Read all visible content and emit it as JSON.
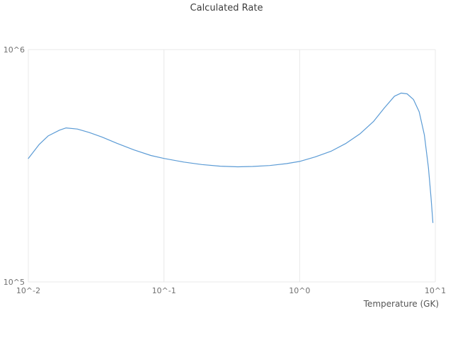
{
  "chart_data": {
    "type": "line",
    "title": "Calculated Rate",
    "xlabel": "Temperature (GK)",
    "ylabel": "",
    "x_scale": "log",
    "y_scale": "log",
    "xlim": [
      0.01,
      10
    ],
    "ylim": [
      100000,
      1000000
    ],
    "grid": true,
    "grid_color": "#e8e8e8",
    "line_color": "#5b9bd5",
    "x_tick_values": [
      0.01,
      0.1,
      1,
      10
    ],
    "x_tick_labels": [
      "10^-2",
      "10^-1",
      "10^0",
      "10^1"
    ],
    "y_tick_values": [
      100000,
      1000000
    ],
    "y_tick_labels": [
      "10^5",
      "10^6"
    ],
    "legend": "none",
    "series": [
      {
        "name": "calculated-rate",
        "x": [
          0.01,
          0.012,
          0.014,
          0.017,
          0.019,
          0.023,
          0.028,
          0.035,
          0.045,
          0.06,
          0.08,
          0.1,
          0.14,
          0.19,
          0.26,
          0.35,
          0.45,
          0.6,
          0.8,
          1.0,
          1.3,
          1.7,
          2.2,
          2.8,
          3.5,
          4.2,
          5.0,
          5.6,
          6.2,
          6.9,
          7.6,
          8.3,
          8.9,
          9.3,
          9.6
        ],
        "y": [
          340000,
          390000,
          425000,
          450000,
          460000,
          455000,
          440000,
          420000,
          395000,
          370000,
          350000,
          340000,
          328000,
          320000,
          315000,
          313000,
          314000,
          317000,
          323000,
          330000,
          345000,
          365000,
          395000,
          435000,
          490000,
          560000,
          630000,
          650000,
          645000,
          610000,
          540000,
          430000,
          310000,
          230000,
          180000
        ]
      }
    ]
  }
}
